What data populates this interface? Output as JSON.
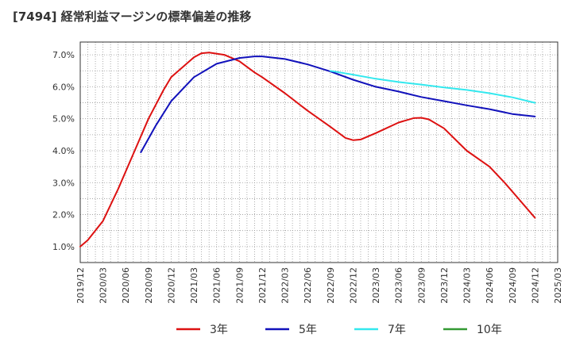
{
  "chart_data": {
    "type": "line",
    "title": "[7494]  経常利益マージンの標準偏差の推移",
    "xlabel": "",
    "ylabel": "",
    "x_ticks": [
      "2019/12",
      "2020/03",
      "2020/06",
      "2020/09",
      "2020/12",
      "2021/03",
      "2021/06",
      "2021/09",
      "2021/12",
      "2022/03",
      "2022/06",
      "2022/09",
      "2022/12",
      "2023/03",
      "2023/06",
      "2023/09",
      "2023/12",
      "2024/03",
      "2024/06",
      "2024/09",
      "2024/12",
      "2025/03"
    ],
    "y_ticks": [
      "1.0%",
      "2.0%",
      "3.0%",
      "4.0%",
      "5.0%",
      "6.0%",
      "7.0%"
    ],
    "ylim": [
      0.5,
      7.4
    ],
    "y_unit": "%",
    "grid": true,
    "legend_position": "bottom",
    "series": [
      {
        "name": "3年",
        "color": "#dd1111",
        "x": [
          "2019/12",
          "2020/01",
          "2020/03",
          "2020/05",
          "2020/07",
          "2020/09",
          "2020/11",
          "2020/12",
          "2021/03",
          "2021/04",
          "2021/05",
          "2021/07",
          "2021/09",
          "2021/11",
          "2021/12",
          "2022/03",
          "2022/06",
          "2022/09",
          "2022/11",
          "2022/12",
          "2023/01",
          "2023/03",
          "2023/06",
          "2023/08",
          "2023/09",
          "2023/10",
          "2023/12",
          "2024/03",
          "2024/06",
          "2024/08",
          "2024/10",
          "2024/12"
        ],
        "values": [
          1.0,
          1.2,
          1.8,
          2.8,
          3.9,
          5.0,
          5.9,
          6.3,
          6.92,
          7.05,
          7.07,
          7.0,
          6.8,
          6.45,
          6.3,
          5.8,
          5.25,
          4.75,
          4.4,
          4.33,
          4.35,
          4.55,
          4.88,
          5.02,
          5.03,
          4.98,
          4.7,
          4.0,
          3.5,
          3.0,
          2.45,
          1.9
        ]
      },
      {
        "name": "5年",
        "color": "#1111bb",
        "x": [
          "2020/08",
          "2020/10",
          "2020/12",
          "2021/03",
          "2021/06",
          "2021/09",
          "2021/11",
          "2021/12",
          "2022/03",
          "2022/06",
          "2022/09",
          "2022/12",
          "2023/03",
          "2023/06",
          "2023/09",
          "2023/12",
          "2024/03",
          "2024/06",
          "2024/09",
          "2024/12"
        ],
        "values": [
          3.95,
          4.8,
          5.55,
          6.3,
          6.72,
          6.9,
          6.95,
          6.95,
          6.87,
          6.7,
          6.48,
          6.22,
          6.0,
          5.85,
          5.68,
          5.55,
          5.42,
          5.3,
          5.15,
          5.07
        ]
      },
      {
        "name": "7年",
        "color": "#33e8ee",
        "x": [
          "2022/09",
          "2022/12",
          "2023/03",
          "2023/06",
          "2023/09",
          "2023/12",
          "2024/03",
          "2024/06",
          "2024/09",
          "2024/12"
        ],
        "values": [
          6.5,
          6.38,
          6.25,
          6.15,
          6.07,
          5.98,
          5.9,
          5.8,
          5.67,
          5.5
        ]
      },
      {
        "name": "10年",
        "color": "#339933",
        "x": [],
        "values": []
      }
    ]
  }
}
